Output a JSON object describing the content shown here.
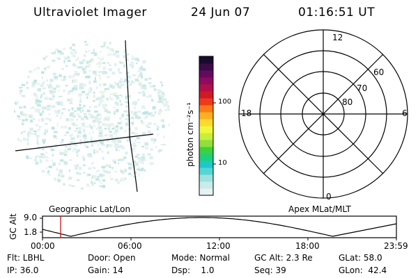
{
  "header": {
    "instrument": "Ultraviolet Imager",
    "date": "24 Jun 07",
    "time": "01:16:51 UT"
  },
  "colorbar": {
    "unit_label": "photon cm⁻²s⁻¹",
    "ticks": [
      "100",
      "10"
    ],
    "colors": [
      "#e6f2f4",
      "#c9ece8",
      "#9ee2e0",
      "#55d6d6",
      "#1ec8c8",
      "#1fd07a",
      "#3cd23c",
      "#8fe03c",
      "#c8ee3c",
      "#f0f83c",
      "#ffd830",
      "#ffb020",
      "#ff7a18",
      "#ee3a1a",
      "#d01828",
      "#b01048",
      "#900a60",
      "#640a5c",
      "#3c0a48",
      "#1a0a30"
    ]
  },
  "polar_plot": {
    "labels": {
      "top": "12",
      "bottom": "0",
      "left": "18",
      "right": "6"
    },
    "rings": [
      "80",
      "70",
      "60"
    ]
  },
  "timeline": {
    "left_label": "Geographic Lat/Lon",
    "right_label": "Apex MLat/MLT",
    "axis_title": "GC Alt",
    "y_ticks": [
      "9.0",
      "1.8"
    ],
    "x_ticks": [
      "00:00",
      "06:00",
      "12:00",
      "18:00",
      "23:59"
    ],
    "current_time_color": "#cc0000"
  },
  "info": {
    "flt": "Flt: LBHL",
    "door": "Door: Open",
    "mode": "Mode: Normal",
    "gc_alt": "GC Alt: 2.3 Re",
    "glat": "GLat:  58.0",
    "ip": "IP: 36.0",
    "gain": "Gain: 14",
    "dsp": "Dsp:    1.0",
    "seq": "Seq: 39",
    "glon": "GLon:  42.4"
  }
}
